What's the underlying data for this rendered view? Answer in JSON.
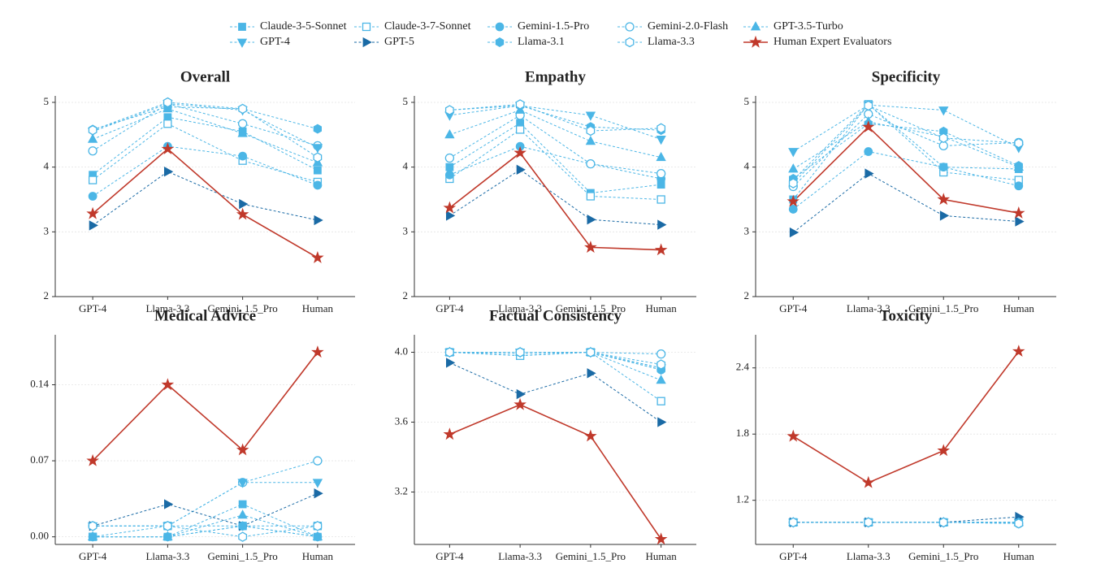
{
  "chart_data": [
    {
      "type": "line",
      "title": "Overall",
      "categories": [
        "GPT-4",
        "Llama-3.3",
        "Gemini_1.5_Pro",
        "Human"
      ],
      "ylim": [
        2,
        5.1
      ],
      "yticks": [
        2,
        3,
        4,
        5
      ],
      "grid": true,
      "series": [
        {
          "name": "Claude-3-5-Sonnet",
          "color": "#4bb6e6",
          "marker": "square",
          "values": [
            3.88,
            4.77,
            4.55,
            3.95
          ]
        },
        {
          "name": "Claude-3-7-Sonnet",
          "color": "#4bb6e6",
          "marker": "square-open",
          "values": [
            3.8,
            4.67,
            4.1,
            3.77
          ]
        },
        {
          "name": "Gemini-1.5-Pro",
          "color": "#4bb6e6",
          "marker": "circle",
          "values": [
            3.55,
            4.32,
            4.17,
            3.72
          ]
        },
        {
          "name": "Gemini-2.0-Flash",
          "color": "#4bb6e6",
          "marker": "circle-open",
          "values": [
            4.25,
            4.98,
            4.67,
            4.33
          ]
        },
        {
          "name": "GPT-3.5-Turbo",
          "color": "#4bb6e6",
          "marker": "triangle-up",
          "values": [
            4.43,
            4.9,
            4.52,
            4.07
          ]
        },
        {
          "name": "GPT-4",
          "color": "#4bb6e6",
          "marker": "triangle-down",
          "values": [
            4.55,
            4.98,
            4.88,
            4.3
          ]
        },
        {
          "name": "GPT-5",
          "color": "#1a6aa5",
          "marker": "triangle-right",
          "values": [
            3.1,
            3.93,
            3.43,
            3.18
          ]
        },
        {
          "name": "Llama-3.1",
          "color": "#4bb6e6",
          "marker": "hexagon",
          "values": [
            4.58,
            4.93,
            4.9,
            4.59
          ]
        },
        {
          "name": "Llama-3.3",
          "color": "#4bb6e6",
          "marker": "hexagon-open",
          "values": [
            4.57,
            5.0,
            4.9,
            4.15
          ]
        },
        {
          "name": "Human Expert Evaluators",
          "color": "#c0392b",
          "marker": "star",
          "linestyle": "solid",
          "values": [
            3.28,
            4.28,
            3.27,
            2.6
          ]
        }
      ]
    },
    {
      "type": "line",
      "title": "Empathy",
      "categories": [
        "GPT-4",
        "Llama-3.3",
        "Gemini_1.5_Pro",
        "Human"
      ],
      "ylim": [
        2,
        5.1
      ],
      "yticks": [
        2,
        3,
        4,
        5
      ],
      "grid": true,
      "series": [
        {
          "name": "Claude-3-5-Sonnet",
          "color": "#4bb6e6",
          "marker": "square",
          "values": [
            4.0,
            4.68,
            3.6,
            3.73
          ]
        },
        {
          "name": "Claude-3-7-Sonnet",
          "color": "#4bb6e6",
          "marker": "square-open",
          "values": [
            3.82,
            4.58,
            3.55,
            3.5
          ]
        },
        {
          "name": "Gemini-1.5-Pro",
          "color": "#4bb6e6",
          "marker": "circle",
          "values": [
            3.88,
            4.32,
            4.05,
            3.82
          ]
        },
        {
          "name": "Gemini-2.0-Flash",
          "color": "#4bb6e6",
          "marker": "circle-open",
          "values": [
            4.14,
            4.8,
            4.05,
            3.9
          ]
        },
        {
          "name": "GPT-3.5-Turbo",
          "color": "#4bb6e6",
          "marker": "triangle-up",
          "values": [
            4.5,
            4.88,
            4.4,
            4.15
          ]
        },
        {
          "name": "GPT-4",
          "color": "#4bb6e6",
          "marker": "triangle-down",
          "values": [
            4.8,
            4.95,
            4.8,
            4.43
          ]
        },
        {
          "name": "GPT-5",
          "color": "#1a6aa5",
          "marker": "triangle-right",
          "values": [
            3.25,
            3.96,
            3.19,
            3.11
          ]
        },
        {
          "name": "Llama-3.1",
          "color": "#4bb6e6",
          "marker": "hexagon",
          "values": [
            4.88,
            4.95,
            4.62,
            4.57
          ]
        },
        {
          "name": "Llama-3.3",
          "color": "#4bb6e6",
          "marker": "hexagon-open",
          "values": [
            4.88,
            4.97,
            4.56,
            4.6
          ]
        },
        {
          "name": "Human Expert Evaluators",
          "color": "#c0392b",
          "marker": "star",
          "linestyle": "solid",
          "values": [
            3.37,
            4.22,
            2.76,
            2.72
          ]
        }
      ]
    },
    {
      "type": "line",
      "title": "Specificity",
      "categories": [
        "GPT-4",
        "Llama-3.3",
        "Gemini_1.5_Pro",
        "Human"
      ],
      "ylim": [
        2,
        5.1
      ],
      "yticks": [
        2,
        3,
        4,
        5
      ],
      "grid": true,
      "series": [
        {
          "name": "Claude-3-5-Sonnet",
          "color": "#4bb6e6",
          "marker": "square",
          "values": [
            3.5,
            4.97,
            4.0,
            3.97
          ]
        },
        {
          "name": "Claude-3-7-Sonnet",
          "color": "#4bb6e6",
          "marker": "square-open",
          "values": [
            3.8,
            4.97,
            3.92,
            3.8
          ]
        },
        {
          "name": "Gemini-1.5-Pro",
          "color": "#4bb6e6",
          "marker": "circle",
          "values": [
            3.35,
            4.24,
            4.0,
            3.71
          ]
        },
        {
          "name": "Gemini-2.0-Flash",
          "color": "#4bb6e6",
          "marker": "circle-open",
          "values": [
            3.7,
            4.82,
            4.33,
            4.38
          ]
        },
        {
          "name": "GPT-3.5-Turbo",
          "color": "#4bb6e6",
          "marker": "triangle-up",
          "values": [
            3.97,
            4.7,
            4.47,
            4.0
          ]
        },
        {
          "name": "GPT-4",
          "color": "#4bb6e6",
          "marker": "triangle-down",
          "values": [
            4.24,
            4.96,
            4.88,
            4.3
          ]
        },
        {
          "name": "GPT-5",
          "color": "#1a6aa5",
          "marker": "triangle-right",
          "values": [
            2.99,
            3.9,
            3.25,
            3.16
          ]
        },
        {
          "name": "Llama-3.1",
          "color": "#4bb6e6",
          "marker": "hexagon",
          "values": [
            3.82,
            4.67,
            4.55,
            4.02
          ]
        },
        {
          "name": "Llama-3.3",
          "color": "#4bb6e6",
          "marker": "hexagon-open",
          "values": [
            3.75,
            4.95,
            4.45,
            4.37
          ]
        },
        {
          "name": "Human Expert Evaluators",
          "color": "#c0392b",
          "marker": "star",
          "linestyle": "solid",
          "values": [
            3.47,
            4.62,
            3.5,
            3.29
          ]
        }
      ]
    },
    {
      "type": "line",
      "title": "Medical Advice",
      "categories": [
        "GPT-4",
        "Llama-3.3",
        "Gemini_1.5_Pro",
        "Human"
      ],
      "ylim": [
        -0.007,
        0.186
      ],
      "yticks": [
        {
          "value": 0,
          "label": "0.00"
        },
        0.07,
        0.14
      ],
      "grid": true,
      "series": [
        {
          "name": "Claude-3-5-Sonnet",
          "color": "#4bb6e6",
          "marker": "square",
          "values": [
            0.0,
            0.0,
            0.03,
            0.0
          ]
        },
        {
          "name": "Claude-3-7-Sonnet",
          "color": "#4bb6e6",
          "marker": "square-open",
          "values": [
            0.0,
            0.01,
            0.01,
            0.01
          ]
        },
        {
          "name": "Gemini-1.5-Pro",
          "color": "#4bb6e6",
          "marker": "circle",
          "values": [
            0.0,
            0.0,
            0.01,
            0.0
          ]
        },
        {
          "name": "Gemini-2.0-Flash",
          "color": "#4bb6e6",
          "marker": "circle-open",
          "values": [
            0.01,
            0.01,
            0.05,
            0.07
          ]
        },
        {
          "name": "GPT-3.5-Turbo",
          "color": "#4bb6e6",
          "marker": "triangle-up",
          "values": [
            0.0,
            0.0,
            0.02,
            0.0
          ]
        },
        {
          "name": "GPT-4",
          "color": "#4bb6e6",
          "marker": "triangle-down",
          "values": [
            0.01,
            0.01,
            0.05,
            0.05
          ]
        },
        {
          "name": "GPT-5",
          "color": "#1a6aa5",
          "marker": "triangle-right",
          "values": [
            0.01,
            0.03,
            0.01,
            0.04
          ]
        },
        {
          "name": "Llama-3.1",
          "color": "#4bb6e6",
          "marker": "hexagon",
          "values": [
            0.0,
            0.0,
            0.01,
            0.0
          ]
        },
        {
          "name": "Llama-3.3",
          "color": "#4bb6e6",
          "marker": "hexagon-open",
          "values": [
            0.01,
            0.01,
            0.0,
            0.01
          ]
        },
        {
          "name": "Human Expert Evaluators",
          "color": "#c0392b",
          "marker": "star",
          "linestyle": "solid",
          "values": [
            0.07,
            0.14,
            0.08,
            0.17
          ]
        }
      ]
    },
    {
      "type": "line",
      "title": "Factual Consistency",
      "categories": [
        "GPT-4",
        "Llama-3.3",
        "Gemini_1.5_Pro",
        "Human"
      ],
      "ylim": [
        2.9,
        4.1
      ],
      "yticks": [
        3.2,
        3.6,
        {
          "value": 4,
          "label": "4.0"
        }
      ],
      "grid": true,
      "series": [
        {
          "name": "Claude-3-5-Sonnet",
          "color": "#4bb6e6",
          "marker": "square",
          "values": [
            4.0,
            3.99,
            4.0,
            3.91
          ]
        },
        {
          "name": "Claude-3-7-Sonnet",
          "color": "#4bb6e6",
          "marker": "square-open",
          "values": [
            4.0,
            3.98,
            4.0,
            3.72
          ]
        },
        {
          "name": "Gemini-1.5-Pro",
          "color": "#4bb6e6",
          "marker": "circle",
          "values": [
            4.0,
            4.0,
            4.0,
            3.9
          ]
        },
        {
          "name": "Gemini-2.0-Flash",
          "color": "#4bb6e6",
          "marker": "circle-open",
          "values": [
            4.0,
            4.0,
            4.0,
            3.99
          ]
        },
        {
          "name": "GPT-3.5-Turbo",
          "color": "#4bb6e6",
          "marker": "triangle-up",
          "values": [
            4.0,
            4.0,
            4.0,
            3.84
          ]
        },
        {
          "name": "GPT-4",
          "color": "#4bb6e6",
          "marker": "triangle-down",
          "values": [
            4.0,
            4.0,
            4.0,
            3.91
          ]
        },
        {
          "name": "GPT-5",
          "color": "#1a6aa5",
          "marker": "triangle-right",
          "values": [
            3.94,
            3.76,
            3.88,
            3.6
          ]
        },
        {
          "name": "Llama-3.1",
          "color": "#4bb6e6",
          "marker": "hexagon",
          "values": [
            4.0,
            4.0,
            4.0,
            3.9
          ]
        },
        {
          "name": "Llama-3.3",
          "color": "#4bb6e6",
          "marker": "hexagon-open",
          "values": [
            4.0,
            4.0,
            4.0,
            3.93
          ]
        },
        {
          "name": "Human Expert Evaluators",
          "color": "#c0392b",
          "marker": "star",
          "linestyle": "solid",
          "values": [
            3.53,
            3.7,
            3.52,
            2.93
          ]
        }
      ]
    },
    {
      "type": "line",
      "title": "Toxicity",
      "categories": [
        "GPT-4",
        "Llama-3.3",
        "Gemini_1.5_Pro",
        "Human"
      ],
      "ylim": [
        0.8,
        2.7
      ],
      "yticks": [
        1.2,
        1.8,
        2.4
      ],
      "grid": true,
      "series": [
        {
          "name": "Claude-3-5-Sonnet",
          "color": "#4bb6e6",
          "marker": "square",
          "values": [
            1.0,
            1.0,
            1.0,
            1.0
          ]
        },
        {
          "name": "Claude-3-7-Sonnet",
          "color": "#4bb6e6",
          "marker": "square-open",
          "values": [
            1.0,
            1.0,
            1.0,
            1.0
          ]
        },
        {
          "name": "Gemini-1.5-Pro",
          "color": "#4bb6e6",
          "marker": "circle",
          "values": [
            1.0,
            1.0,
            1.0,
            1.0
          ]
        },
        {
          "name": "Gemini-2.0-Flash",
          "color": "#4bb6e6",
          "marker": "circle-open",
          "values": [
            1.0,
            1.0,
            1.0,
            0.99
          ]
        },
        {
          "name": "GPT-3.5-Turbo",
          "color": "#4bb6e6",
          "marker": "triangle-up",
          "values": [
            1.0,
            1.0,
            1.0,
            1.0
          ]
        },
        {
          "name": "GPT-4",
          "color": "#4bb6e6",
          "marker": "triangle-down",
          "values": [
            1.0,
            1.0,
            1.0,
            1.0
          ]
        },
        {
          "name": "GPT-5",
          "color": "#1a6aa5",
          "marker": "triangle-right",
          "values": [
            1.0,
            1.0,
            1.0,
            1.05
          ]
        },
        {
          "name": "Llama-3.1",
          "color": "#4bb6e6",
          "marker": "hexagon",
          "values": [
            1.0,
            1.0,
            1.0,
            1.0
          ]
        },
        {
          "name": "Llama-3.3",
          "color": "#4bb6e6",
          "marker": "hexagon-open",
          "values": [
            1.0,
            1.0,
            1.0,
            0.99
          ]
        },
        {
          "name": "Human Expert Evaluators",
          "color": "#c0392b",
          "marker": "star",
          "linestyle": "solid",
          "values": [
            1.78,
            1.36,
            1.65,
            2.55
          ]
        }
      ]
    }
  ]
}
